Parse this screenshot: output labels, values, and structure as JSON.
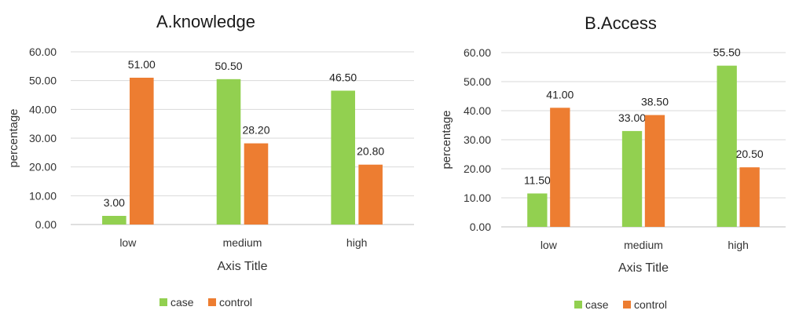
{
  "chart_data": [
    {
      "type": "bar",
      "title": "A.knowledge",
      "xlabel": "Axis Title",
      "ylabel": "percentage",
      "categories": [
        "low",
        "medium",
        "high"
      ],
      "yticks": [
        "0.00",
        "10.00",
        "20.00",
        "30.00",
        "40.00",
        "50.00",
        "60.00"
      ],
      "ylim": [
        0,
        60
      ],
      "grid": true,
      "legend_position": "bottom",
      "series": [
        {
          "name": "case",
          "color": "#92d050",
          "values": [
            3.0,
            50.5,
            46.5
          ],
          "labels": [
            "3.00",
            "50.50",
            "46.50"
          ]
        },
        {
          "name": "control",
          "color": "#ed7d31",
          "values": [
            51.0,
            28.2,
            20.8
          ],
          "labels": [
            "51.00",
            "28.20",
            "20.80"
          ]
        }
      ]
    },
    {
      "type": "bar",
      "title": "B.Access",
      "xlabel": "Axis Title",
      "ylabel": "percentage",
      "categories": [
        "low",
        "medium",
        "high"
      ],
      "yticks": [
        "0.00",
        "10.00",
        "20.00",
        "30.00",
        "40.00",
        "50.00",
        "60.00"
      ],
      "ylim": [
        0,
        60
      ],
      "grid": true,
      "legend_position": "bottom",
      "series": [
        {
          "name": "case",
          "color": "#92d050",
          "values": [
            11.5,
            33.0,
            55.5
          ],
          "labels": [
            "11.50",
            "33.00",
            "55.50"
          ]
        },
        {
          "name": "control",
          "color": "#ed7d31",
          "values": [
            41.0,
            38.5,
            20.5
          ],
          "labels": [
            "41.00",
            "38.50",
            "20.50"
          ]
        }
      ]
    }
  ]
}
